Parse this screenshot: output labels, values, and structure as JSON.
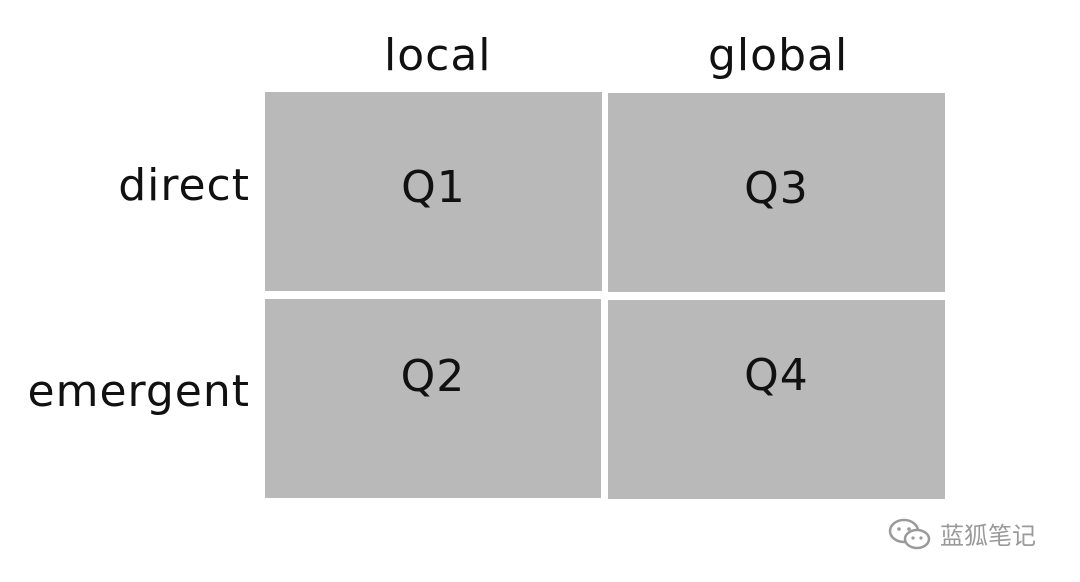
{
  "columns": [
    "local",
    "global"
  ],
  "rows": [
    "direct",
    "emergent"
  ],
  "cells": {
    "q1": "Q1",
    "q2": "Q2",
    "q3": "Q3",
    "q4": "Q4"
  },
  "watermark": {
    "icon": "wechat-icon",
    "text": "蓝狐笔记"
  },
  "colors": {
    "cell_fill": "#b9b9b9",
    "text": "#111111",
    "watermark": "#9a9a9a"
  }
}
